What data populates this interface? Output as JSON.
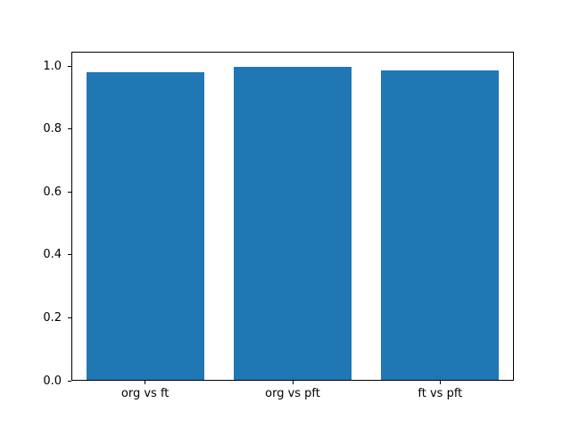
{
  "figure": {
    "background": "#ffffff",
    "axis_color": "#000000"
  },
  "chart_data": {
    "type": "bar",
    "title": "",
    "xlabel": "",
    "ylabel": "",
    "categories": [
      "org vs ft",
      "org vs pft",
      "ft vs pft"
    ],
    "values": [
      0.98,
      0.997,
      0.986
    ],
    "bar_color": "#1f77b4",
    "bar_width_fraction": 0.8,
    "ylim": [
      0,
      1.047
    ],
    "yticks": [
      0.0,
      0.2,
      0.4,
      0.6,
      0.8,
      1.0
    ],
    "ytick_labels": [
      "0.0",
      "0.2",
      "0.4",
      "0.6",
      "0.8",
      "1.0"
    ],
    "grid": false,
    "legend_position": "none"
  }
}
